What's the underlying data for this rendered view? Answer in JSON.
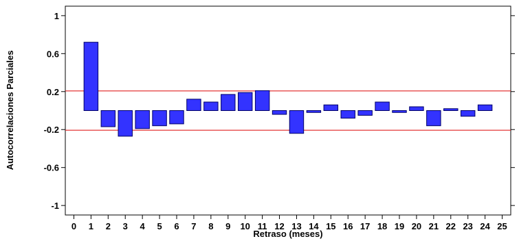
{
  "chart_data": {
    "type": "bar",
    "title": "",
    "xlabel": "Retraso (meses)",
    "ylabel": "Autocorrelaciones Parciales",
    "x_ticks": [
      0,
      1,
      2,
      3,
      4,
      5,
      6,
      7,
      8,
      9,
      10,
      11,
      12,
      13,
      14,
      15,
      16,
      17,
      18,
      19,
      20,
      21,
      22,
      23,
      24,
      25
    ],
    "y_ticks": [
      1,
      0.6,
      0.2,
      -0.2,
      -0.6,
      -1
    ],
    "y_tick_labels": [
      "1",
      "0.6",
      "0.2",
      "-0.2",
      "-0.6",
      "-1"
    ],
    "xlim": [
      -0.5,
      25.5
    ],
    "ylim": [
      -1.1,
      1.1
    ],
    "grid": false,
    "categories": [
      1,
      2,
      3,
      4,
      5,
      6,
      7,
      8,
      9,
      10,
      11,
      12,
      13,
      14,
      15,
      16,
      17,
      18,
      19,
      20,
      21,
      22,
      23,
      24
    ],
    "values": [
      0.72,
      -0.17,
      -0.27,
      -0.19,
      -0.16,
      -0.14,
      0.12,
      0.09,
      0.17,
      0.19,
      0.21,
      -0.04,
      -0.24,
      -0.02,
      0.06,
      -0.08,
      -0.05,
      0.09,
      -0.02,
      0.04,
      -0.16,
      0.02,
      -0.06,
      0.06
    ],
    "confidence_limits": [
      0.207,
      -0.207
    ],
    "colors": {
      "bar_fill": "#3333ff",
      "bar_stroke": "#000066",
      "limit_line": "#e02020",
      "axis": "#000000"
    }
  }
}
